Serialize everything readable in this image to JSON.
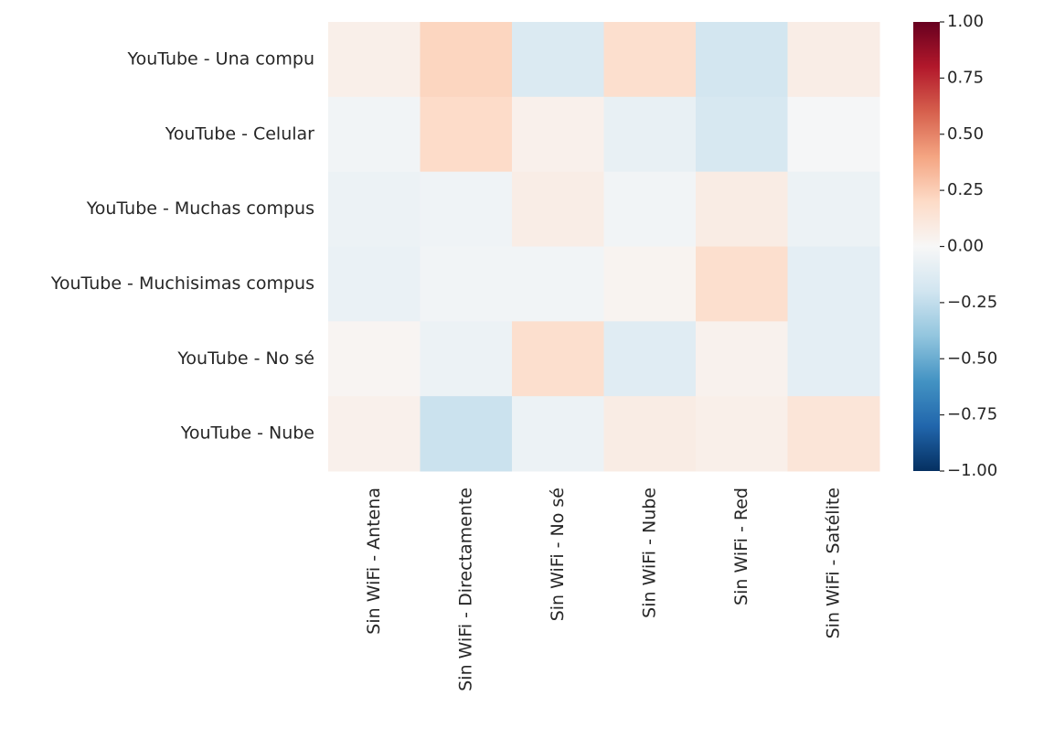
{
  "chart_data": {
    "type": "heatmap",
    "title": "",
    "xlabel": "",
    "ylabel": "",
    "x_categories": [
      "Sin WiFi - Antena",
      "Sin WiFi - Directamente",
      "Sin WiFi - No sé",
      "Sin WiFi - Nube",
      "Sin WiFi - Red",
      "Sin WiFi - Satélite"
    ],
    "y_categories": [
      "YouTube - Una compu",
      "YouTube - Celular",
      "YouTube - Muchas compus",
      "YouTube - Muchisimas compus",
      "YouTube - No sé",
      "YouTube - Nube"
    ],
    "values": [
      [
        0.06,
        0.22,
        -0.15,
        0.17,
        -0.19,
        0.07
      ],
      [
        -0.03,
        0.19,
        0.05,
        -0.08,
        -0.17,
        -0.01
      ],
      [
        -0.06,
        -0.04,
        0.07,
        -0.03,
        0.08,
        -0.06
      ],
      [
        -0.07,
        -0.03,
        -0.03,
        0.03,
        0.17,
        -0.1
      ],
      [
        0.02,
        -0.06,
        0.17,
        -0.12,
        0.04,
        -0.1
      ],
      [
        0.05,
        -0.22,
        -0.06,
        0.08,
        0.06,
        0.13
      ]
    ],
    "colormap": "RdBu_r",
    "vmin": -1.0,
    "vmax": 1.0,
    "colorbar_ticks": [
      "1.00",
      "0.75",
      "0.50",
      "0.25",
      "0.00",
      "−0.25",
      "−0.50",
      "−0.75",
      "−1.00"
    ],
    "colorbar_placement": "right",
    "grid": false
  }
}
